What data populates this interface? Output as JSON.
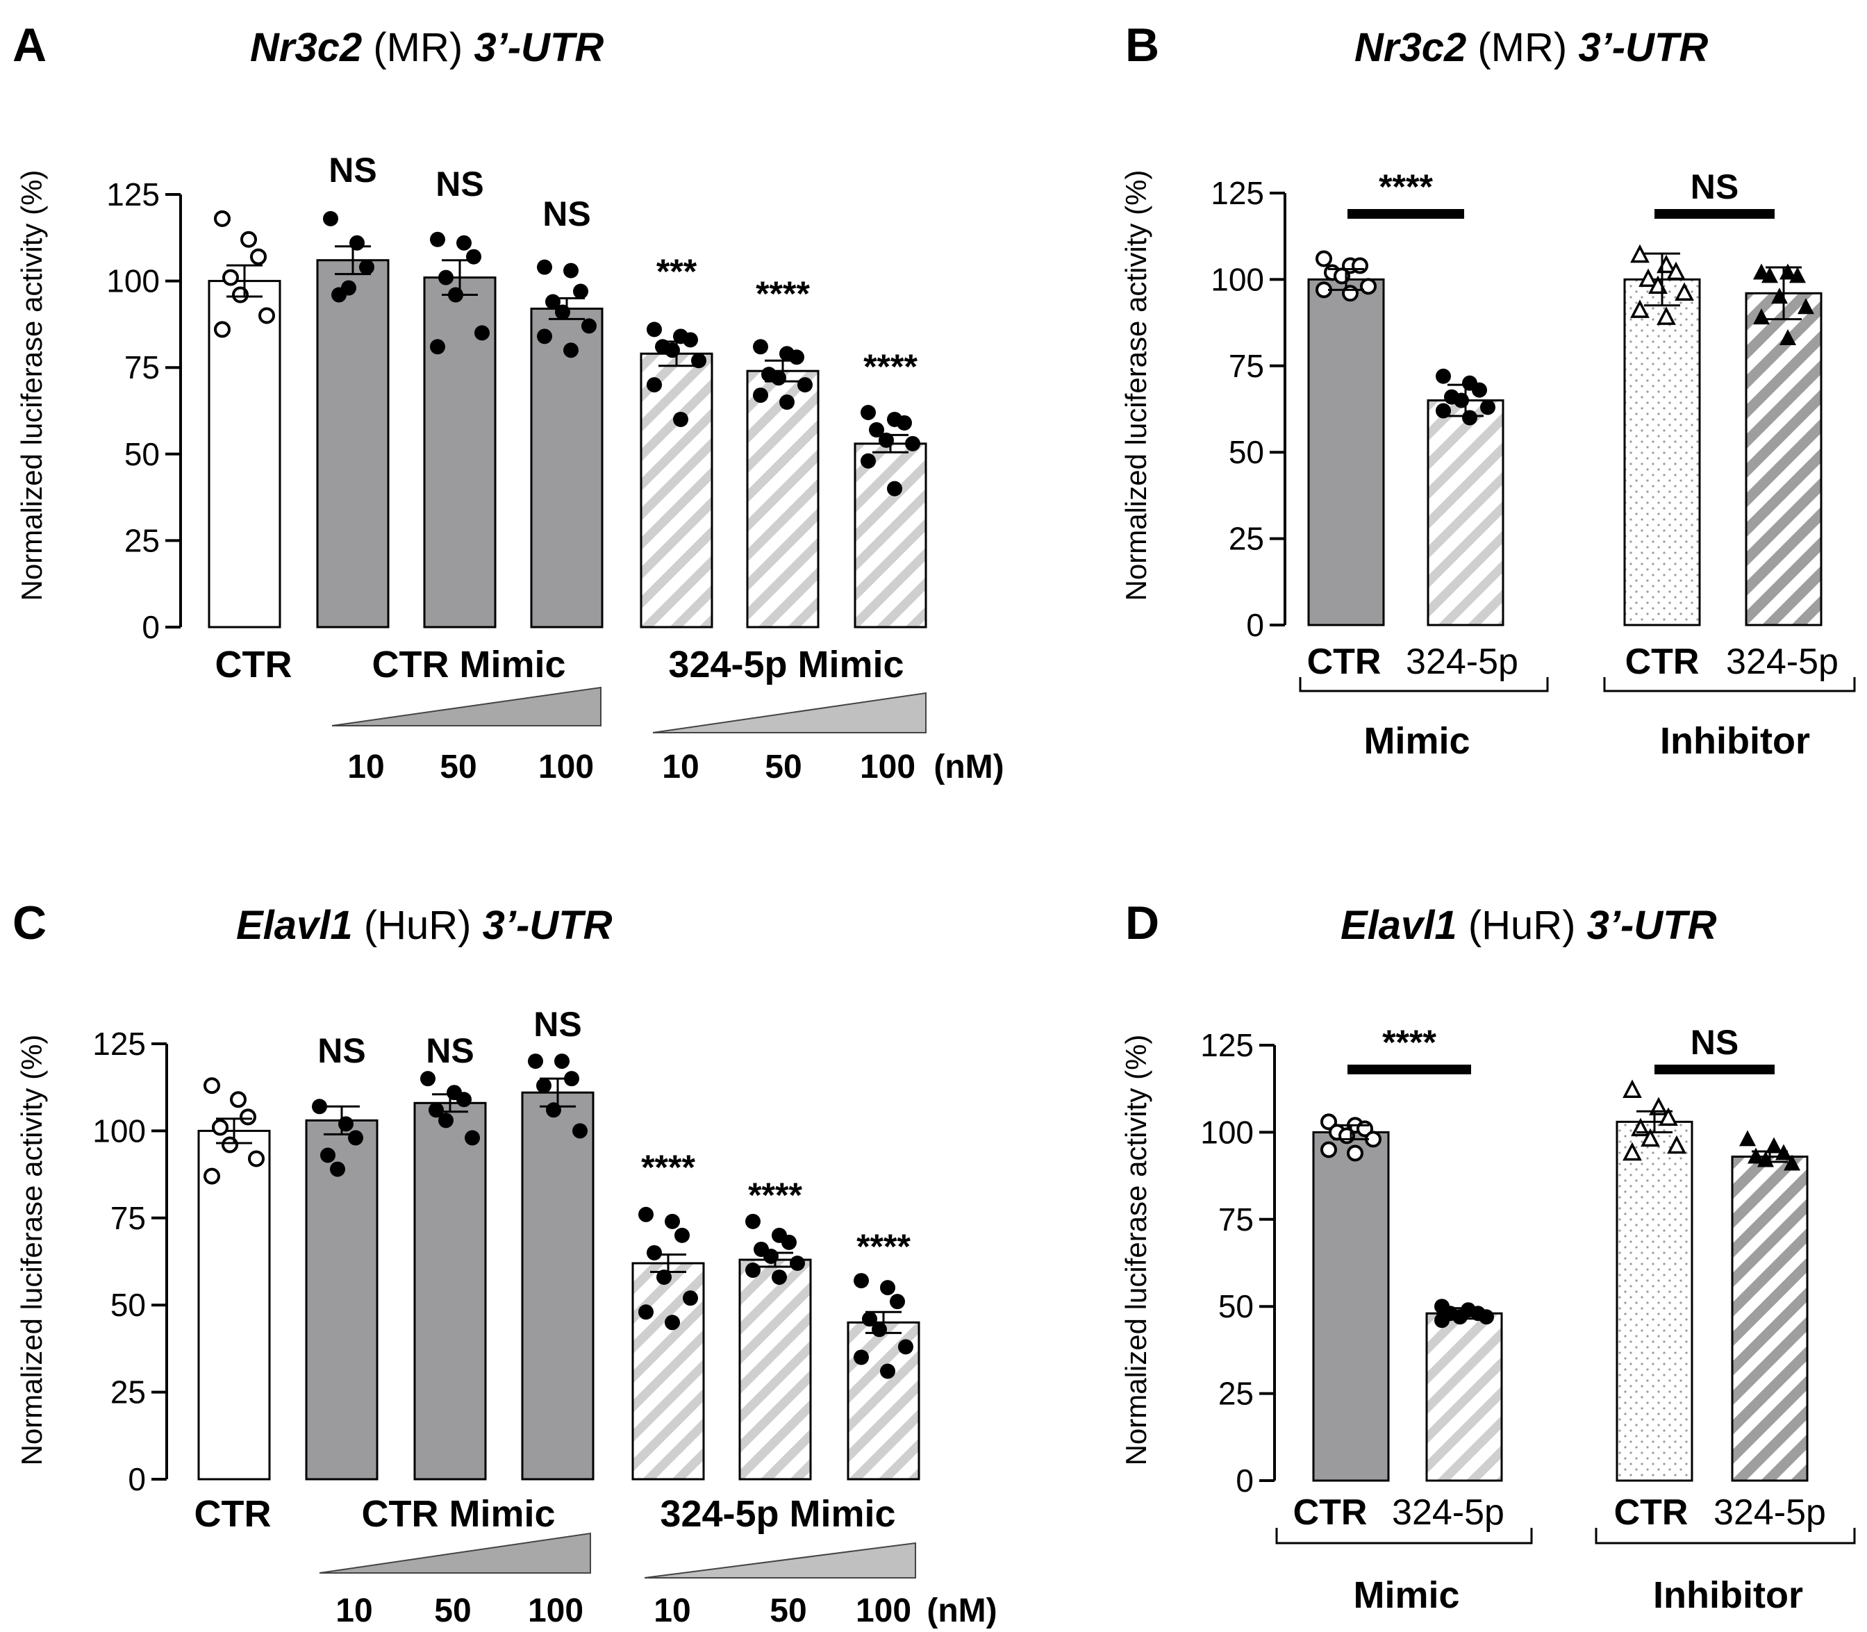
{
  "charts": {
    "A": {
      "panel_label": "A",
      "title": {
        "gene": "Nr3c2",
        "protein": "(MR)",
        "region": "3’-UTR"
      },
      "ylabel": "Normalized luciferase activity (%)",
      "yticks": [
        "0",
        "25",
        "50",
        "75",
        "100",
        "125"
      ],
      "xlabels": {
        "ctr": "CTR",
        "ctr_mimic": "CTR Mimic",
        "mir_mimic": "324-5p Mimic"
      },
      "doses": [
        "10",
        "50",
        "100",
        "10",
        "50",
        "100"
      ],
      "dose_unit": "(nM)",
      "significance": [
        "",
        "NS",
        "NS",
        "NS",
        "***",
        "****",
        "****"
      ]
    },
    "B": {
      "panel_label": "B",
      "title": {
        "gene": "Nr3c2",
        "protein": "(MR)",
        "region": "3’-UTR"
      },
      "ylabel": "Normalized luciferase activity (%)",
      "yticks": [
        "0",
        "25",
        "50",
        "75",
        "100",
        "125"
      ],
      "bar_labels": [
        "CTR",
        "324-5p",
        "CTR",
        "324-5p"
      ],
      "groups": [
        "Mimic",
        "Inhibitor"
      ],
      "significance": [
        "****",
        "NS"
      ]
    },
    "C": {
      "panel_label": "C",
      "title": {
        "gene": "Elavl1",
        "protein": "(HuR)",
        "region": "3’-UTR"
      },
      "ylabel": "Normalized luciferase activity (%)",
      "yticks": [
        "0",
        "25",
        "50",
        "75",
        "100",
        "125"
      ],
      "xlabels": {
        "ctr": "CTR",
        "ctr_mimic": "CTR Mimic",
        "mir_mimic": "324-5p Mimic"
      },
      "doses": [
        "10",
        "50",
        "100",
        "10",
        "50",
        "100"
      ],
      "dose_unit": "(nM)",
      "significance": [
        "",
        "NS",
        "NS",
        "NS",
        "****",
        "****",
        "****"
      ]
    },
    "D": {
      "panel_label": "D",
      "title": {
        "gene": "Elavl1",
        "protein": "(HuR)",
        "region": "3’-UTR"
      },
      "ylabel": "Normalized luciferase activity (%)",
      "yticks": [
        "0",
        "25",
        "50",
        "75",
        "100",
        "125"
      ],
      "bar_labels": [
        "CTR",
        "324-5p",
        "CTR",
        "324-5p"
      ],
      "groups": [
        "Mimic",
        "Inhibitor"
      ],
      "significance": [
        "****",
        "NS"
      ]
    }
  },
  "chart_data": [
    {
      "panel": "A",
      "type": "bar",
      "ylim": [
        0,
        125
      ],
      "categories": [
        "CTR",
        "CTR Mimic 10 nM",
        "CTR Mimic 50 nM",
        "CTR Mimic 100 nM",
        "324-5p Mimic 10 nM",
        "324-5p Mimic 50 nM",
        "324-5p Mimic 100 nM"
      ],
      "values": [
        100,
        106,
        101,
        92,
        79,
        74,
        53
      ],
      "sem": [
        4.5,
        4,
        5,
        3,
        3.5,
        3,
        2.5
      ],
      "points": [
        [
          118,
          112,
          107,
          101,
          96,
          90,
          86
        ],
        [
          118,
          111,
          104,
          96,
          98
        ],
        [
          112,
          111,
          107,
          101,
          96,
          85,
          81
        ],
        [
          104,
          103,
          97,
          94,
          91,
          87,
          84,
          80
        ],
        [
          86,
          84,
          83,
          81,
          80,
          77,
          70,
          60
        ],
        [
          81,
          79,
          78,
          73,
          72,
          70,
          67,
          65
        ],
        [
          62,
          60,
          59,
          57,
          54,
          53,
          48,
          40
        ]
      ],
      "fill": [
        "white",
        "solid",
        "solid",
        "solid",
        "hatched",
        "hatched",
        "hatched"
      ],
      "marker": "circle"
    },
    {
      "panel": "B",
      "type": "bar",
      "ylim": [
        0,
        125
      ],
      "categories": [
        "Mimic CTR",
        "Mimic 324-5p",
        "Inhibitor CTR",
        "Inhibitor 324-5p"
      ],
      "values": [
        100,
        65,
        100,
        96
      ],
      "sd": [
        3,
        4.5,
        7.5,
        7.5
      ],
      "points": [
        [
          106,
          104,
          104,
          102,
          101,
          98,
          97,
          96
        ],
        [
          72,
          70,
          68,
          66,
          65,
          63,
          62,
          60
        ],
        [
          107,
          104,
          102,
          100,
          98,
          96,
          91,
          89
        ],
        [
          102,
          102,
          101,
          101,
          95,
          92,
          89,
          83
        ]
      ],
      "fill": [
        "solid",
        "hatched",
        "dotted",
        "hatched-dark"
      ],
      "marker": [
        "open-circle",
        "filled-circle",
        "open-triangle",
        "filled-triangle"
      ]
    },
    {
      "panel": "C",
      "type": "bar",
      "ylim": [
        0,
        125
      ],
      "categories": [
        "CTR",
        "CTR Mimic 10 nM",
        "CTR Mimic 50 nM",
        "CTR Mimic 100 nM",
        "324-5p Mimic 10 nM",
        "324-5p Mimic 50 nM",
        "324-5p Mimic 100 nM"
      ],
      "values": [
        100,
        103,
        108,
        111,
        62,
        63,
        45
      ],
      "sem": [
        3.5,
        4,
        2.5,
        4,
        2.5,
        2,
        3
      ],
      "points": [
        [
          113,
          109,
          104,
          101,
          96,
          92,
          87
        ],
        [
          107,
          102,
          98,
          93,
          89
        ],
        [
          115,
          111,
          109,
          106,
          103,
          98
        ],
        [
          120,
          120,
          115,
          113,
          106,
          100
        ],
        [
          76,
          74,
          70,
          65,
          58,
          52,
          48,
          45
        ],
        [
          74,
          70,
          68,
          66,
          64,
          62,
          60,
          58
        ],
        [
          57,
          55,
          51,
          46,
          43,
          38,
          35,
          31
        ]
      ],
      "fill": [
        "white",
        "solid",
        "solid",
        "solid",
        "hatched",
        "hatched",
        "hatched"
      ],
      "marker": "circle"
    },
    {
      "panel": "D",
      "type": "bar",
      "ylim": [
        0,
        125
      ],
      "categories": [
        "Mimic CTR",
        "Mimic 324-5p",
        "Inhibitor CTR",
        "Inhibitor 324-5p"
      ],
      "values": [
        100,
        48,
        103,
        93
      ],
      "sd": [
        2,
        1.5,
        3,
        1.5
      ],
      "points": [
        [
          103,
          102,
          101,
          100,
          99,
          98,
          95,
          94
        ],
        [
          50,
          49,
          48,
          48,
          47,
          47,
          46
        ],
        [
          112,
          107,
          104,
          101,
          98,
          96,
          94
        ],
        [
          98,
          96,
          94,
          93,
          92,
          91
        ]
      ],
      "fill": [
        "solid",
        "hatched",
        "dotted",
        "hatched-dark"
      ],
      "marker": [
        "open-circle",
        "filled-circle",
        "open-triangle",
        "filled-triangle"
      ]
    }
  ]
}
